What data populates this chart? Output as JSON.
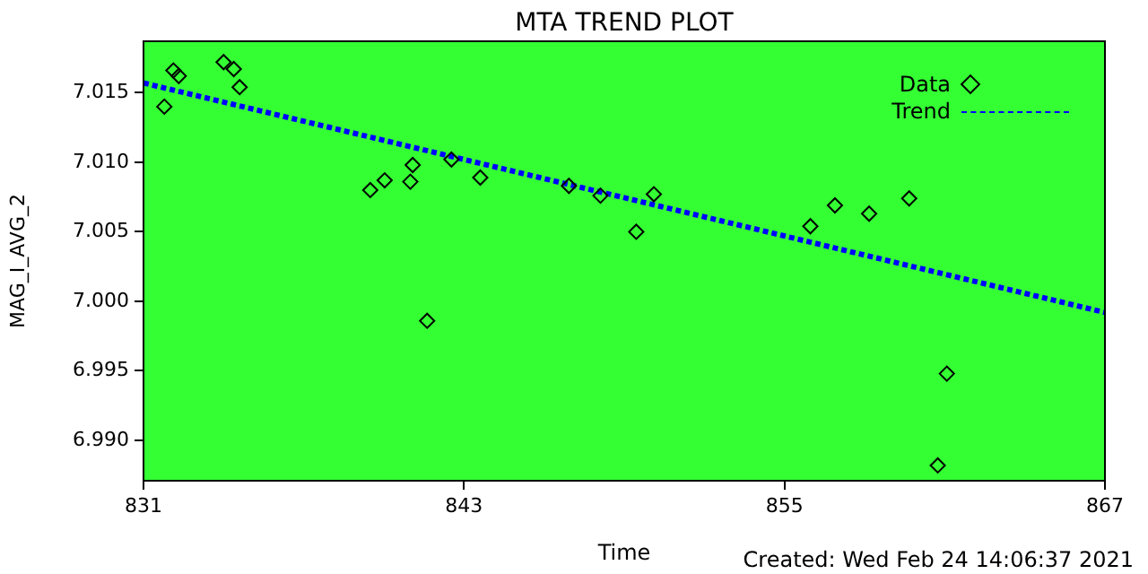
{
  "chart_data": {
    "type": "scatter",
    "title": "MTA TREND PLOT",
    "xlabel": "Time",
    "ylabel": "MAG_I_AVG_2",
    "xlim": [
      831,
      867
    ],
    "xticks": [
      831,
      843,
      855,
      867
    ],
    "ylim": [
      6.9871,
      7.0187
    ],
    "yticks": [
      {
        "value": 6.99,
        "label": "6.990"
      },
      6.995,
      {
        "value": 7.0,
        "label": "7.000"
      },
      7.005,
      {
        "value": 7.01,
        "label": "7.010"
      },
      7.015
    ],
    "grid": false,
    "legend": "top right",
    "series": [
      {
        "name": "Data",
        "type": "scatter",
        "marker": "diamond",
        "color": "#000000",
        "x": [
          831.78,
          832.12,
          832.32,
          834.0,
          834.38,
          834.6,
          839.49,
          840.03,
          840.99,
          841.08,
          841.62,
          842.53,
          843.61,
          846.93,
          848.11,
          849.45,
          850.11,
          855.97,
          856.89,
          858.17,
          859.67,
          860.74,
          861.08
        ],
        "values": [
          7.014,
          7.0166,
          7.0162,
          7.0172,
          7.0167,
          7.0154,
          7.008,
          7.0087,
          7.0086,
          7.0098,
          6.9986,
          7.0102,
          7.0089,
          7.0083,
          7.0076,
          7.005,
          7.0077,
          7.0054,
          7.0069,
          7.0063,
          7.0074,
          6.9882,
          6.9948
        ]
      },
      {
        "name": "Trend",
        "type": "line",
        "marker": "none",
        "line_style": "dotted",
        "color": "#0000ff",
        "x": [
          831,
          867
        ],
        "values": [
          7.0157,
          6.9992
        ]
      }
    ],
    "annotations": [
      "Created: Wed Feb 24 14:06:37 2021"
    ]
  }
}
